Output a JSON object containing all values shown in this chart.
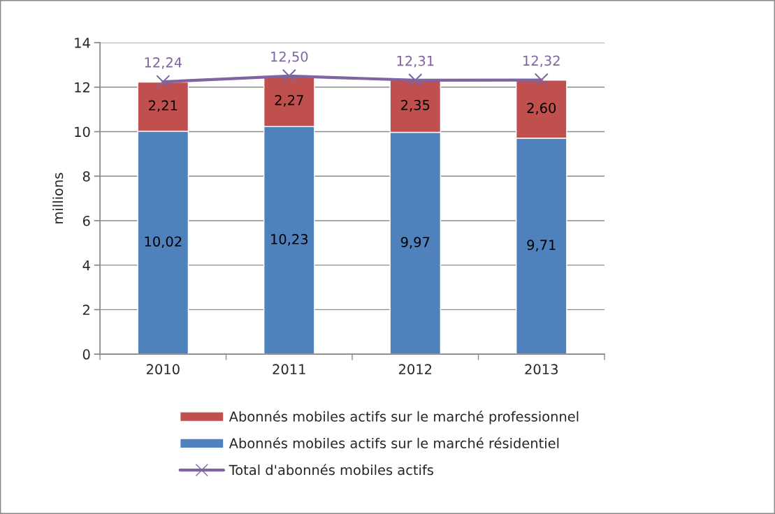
{
  "chart_data": {
    "type": "bar",
    "stacked": true,
    "ylabel": "millions",
    "categories": [
      "2010",
      "2011",
      "2012",
      "2013"
    ],
    "series": [
      {
        "name": "Abonnés mobiles actifs sur le marché résidentiel",
        "color": "#4f81bd",
        "values": [
          10.02,
          10.23,
          9.97,
          9.71
        ],
        "value_labels": [
          "10,02",
          "10,23",
          "9,97",
          "9,71"
        ]
      },
      {
        "name": "Abonnés mobiles actifs sur le marché professionnel",
        "color": "#c0504d",
        "values": [
          2.21,
          2.27,
          2.35,
          2.6
        ],
        "value_labels": [
          "2,21",
          "2,27",
          "2,35",
          "2,60"
        ]
      },
      {
        "name": "Total d'abonnés mobiles actifs",
        "type": "line",
        "color": "#8064a2",
        "marker": "cross",
        "values": [
          12.24,
          12.5,
          12.31,
          12.32
        ],
        "value_labels": [
          "12,24",
          "12,50",
          "12,31",
          "12,32"
        ]
      }
    ],
    "ylim": [
      0,
      14
    ],
    "yticks": [
      0,
      2,
      4,
      6,
      8,
      10,
      12,
      14
    ],
    "grid": "y",
    "legend": "bottom"
  }
}
